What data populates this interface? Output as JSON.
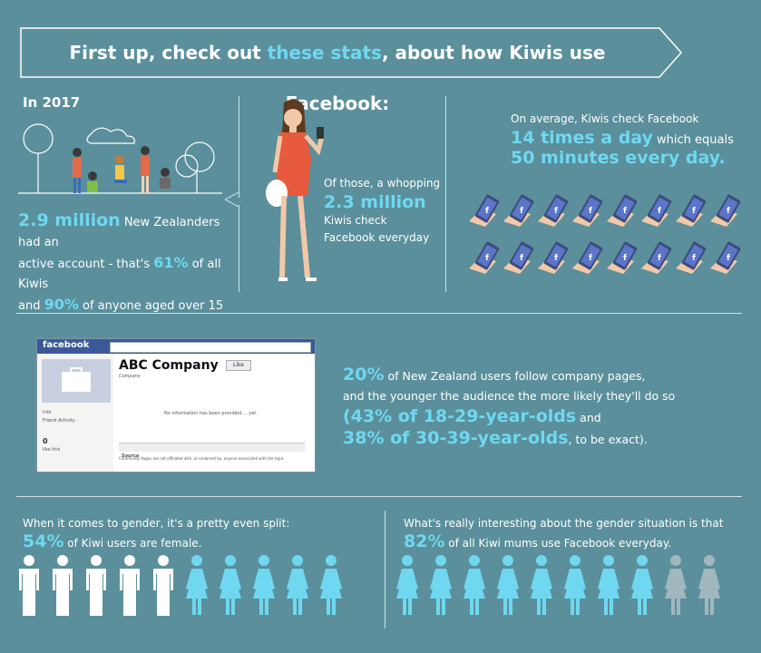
{
  "banner": {
    "prefix": "First up, check out ",
    "highlight": "these stats",
    "suffix": ", about how Kiwis use Facebook:"
  },
  "section1": {
    "year": "In 2017",
    "stat1": {
      "num": "2.9 million",
      "t1": " New Zealanders had an",
      "t2": "active account - that's ",
      "pct1": "61%",
      "t3": " of all Kiwis",
      "t4": "and ",
      "pct2": "90%",
      "t5": " of anyone aged over 15"
    },
    "stat2": {
      "t1": "Of those, a whopping",
      "num": "2.3 million",
      "t2": "Kiwis check",
      "t3": "Facebook everyday"
    },
    "stat3": {
      "t1": "On average, Kiwis check Facebook",
      "num1": "14 times a day",
      "t2": " which equals",
      "num2": "50 minutes every day."
    }
  },
  "section2": {
    "fb_logo": "facebook",
    "company": "ABC Company",
    "company_sub": "Company",
    "like": "Like",
    "noinfo": "No information has been provided.... yet.",
    "side_info": "Info",
    "side_friend": "Friend Activity",
    "side_count": "0",
    "side_like": "like this",
    "source": "Source",
    "disclaimer": "Community Pages are not affiliated with, or endorsed by, anyone associated with the topic.",
    "pct": "20%",
    "t1": " of New Zealand users follow company pages,",
    "t2": "and the younger  the audience the more likely they'll do so",
    "p1": "(43% of 18-29-year-olds",
    "t3": " and",
    "p2": "38% of 30-39-year-olds",
    "t4": ", to be exact)."
  },
  "section3": {
    "left_t1": "When it comes to gender, it's a pretty even split:",
    "left_pct": "54%",
    "left_t2": " of Kiwi users are female.",
    "right_t1": "What's really interesting about the gender situation is that",
    "right_pct": "82%",
    "right_t2": " of all Kiwi mums use Facebook everyday.",
    "left_male_count": 5,
    "left_female_count": 5,
    "right_female_highlighted": 8,
    "right_female_grey": 2
  },
  "colors": {
    "bg": "#5a8f9b",
    "accent": "#6fd8f0",
    "grey_icon": "#9fb7bd"
  },
  "phone_rows": 2,
  "phone_cols": 8
}
